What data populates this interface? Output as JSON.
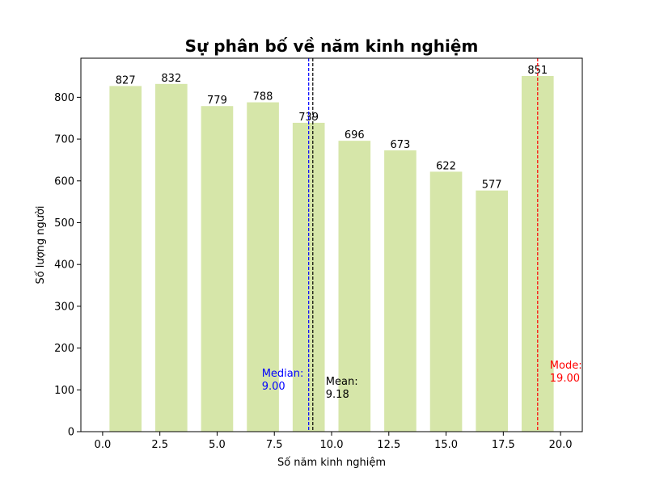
{
  "chart_data": {
    "type": "bar",
    "title": "Sự phân bố về năm kinh nghiệm",
    "xlabel": "Số năm kinh nghiệm",
    "ylabel": "Số lượng người",
    "xlim": [
      -0.95,
      20.95
    ],
    "ylim": [
      0,
      893.55
    ],
    "x_ticks": [
      0.0,
      2.5,
      5.0,
      7.5,
      10.0,
      12.5,
      15.0,
      17.5,
      20.0
    ],
    "x_tick_labels": [
      "0.0",
      "2.5",
      "5.0",
      "7.5",
      "10.0",
      "12.5",
      "15.0",
      "17.5",
      "20.0"
    ],
    "y_ticks": [
      0,
      100,
      200,
      300,
      400,
      500,
      600,
      700,
      800
    ],
    "y_tick_labels": [
      "0",
      "100",
      "200",
      "300",
      "400",
      "500",
      "600",
      "700",
      "800"
    ],
    "bar_width": 1.4,
    "bars": [
      {
        "x": 1.0,
        "value": 827,
        "label": "827"
      },
      {
        "x": 3.0,
        "value": 832,
        "label": "832"
      },
      {
        "x": 5.0,
        "value": 779,
        "label": "779"
      },
      {
        "x": 7.0,
        "value": 788,
        "label": "788"
      },
      {
        "x": 9.0,
        "value": 739,
        "label": "739"
      },
      {
        "x": 11.0,
        "value": 696,
        "label": "696"
      },
      {
        "x": 13.0,
        "value": 673,
        "label": "673"
      },
      {
        "x": 15.0,
        "value": 622,
        "label": "622"
      },
      {
        "x": 17.0,
        "value": 577,
        "label": "577"
      },
      {
        "x": 19.0,
        "value": 851,
        "label": "851"
      }
    ],
    "bar_color": "#d6e6a9",
    "lines": [
      {
        "name": "median",
        "x": 9.0,
        "color": "#0000ff",
        "label_lines": [
          "Median:",
          "9.00"
        ]
      },
      {
        "name": "mean",
        "x": 9.18,
        "color": "#000000",
        "label_lines": [
          "Mean:",
          "9.18"
        ]
      },
      {
        "name": "mode",
        "x": 19.0,
        "color": "#ff0000",
        "label_lines": [
          "Mode:",
          "19.00"
        ]
      }
    ],
    "grid": false
  }
}
